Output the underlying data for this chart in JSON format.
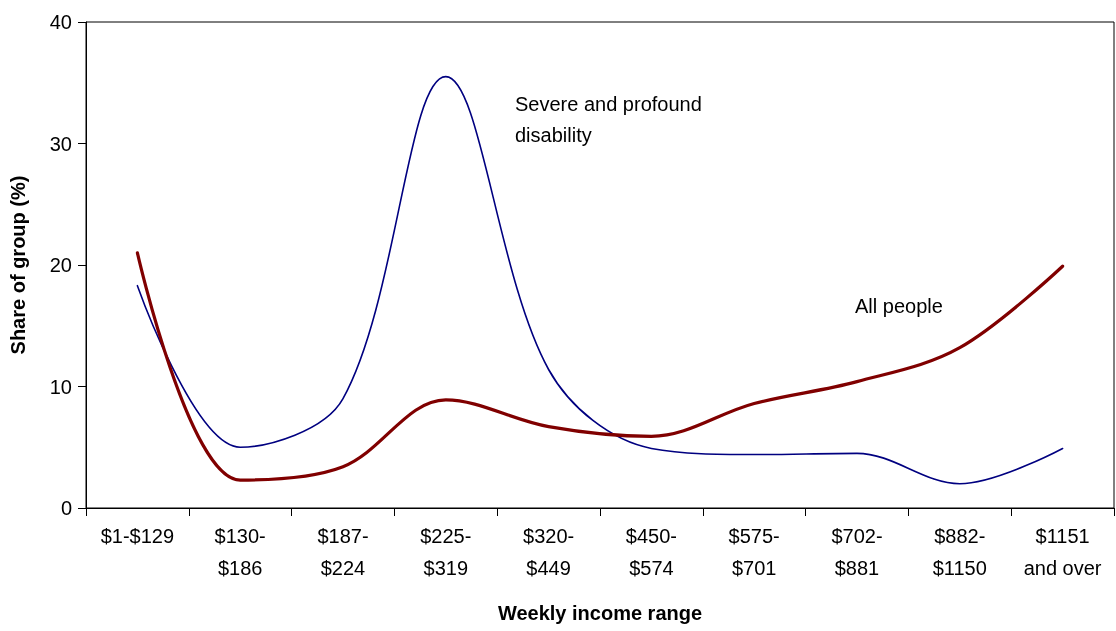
{
  "chart_data": {
    "type": "line",
    "xlabel": "Weekly income range",
    "ylabel": "Share of group (%)",
    "categories": [
      "$1-$129",
      "$130-\n$186",
      "$187-\n$224",
      "$225-\n$319",
      "$320-\n$449",
      "$450-\n$574",
      "$575-\n$701",
      "$702-\n$881",
      "$882-\n$1150",
      "$1151\nand over"
    ],
    "series": [
      {
        "name": "Severe and profound disability",
        "color": "#000080",
        "values": [
          18.3,
          5.0,
          9.0,
          35.5,
          11.4,
          4.9,
          4.4,
          4.5,
          2.0,
          4.9
        ]
      },
      {
        "name": "All people",
        "color": "#800000",
        "values": [
          21.0,
          2.3,
          3.4,
          8.9,
          6.7,
          5.9,
          8.6,
          10.4,
          13.2,
          19.9
        ]
      }
    ],
    "ylim": [
      0,
      40
    ],
    "yticks": [
      0,
      10,
      20,
      30,
      40
    ],
    "grid": false,
    "legend": false,
    "marker": "none",
    "line_style": "solid"
  }
}
